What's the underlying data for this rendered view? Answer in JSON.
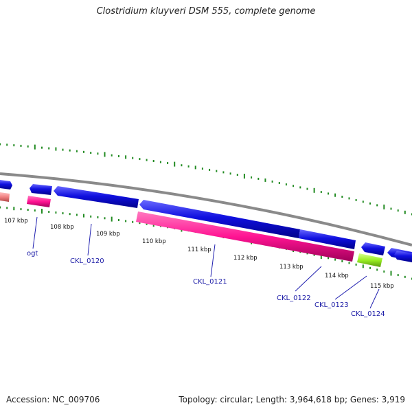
{
  "title": "Clostridium kluyveri DSM 555, complete genome",
  "footer": {
    "accession": "Accession: NC_009706",
    "topology": "Topology: circular; Length: 3,964,618 bp; Genes: 3,919"
  },
  "colors": {
    "backbone": "#888888",
    "forward_gene": "#1010e0",
    "reverse_gene_a": "#ff1493",
    "reverse_gene_b": "#f08080",
    "reverse_gene_c": "#99ee22",
    "gc_skew_marks": "#228b22",
    "label_line": "#2020b0"
  },
  "ticks": [
    "107 kbp",
    "108 kbp",
    "109 kbp",
    "110 kbp",
    "111 kbp",
    "112 kbp",
    "113 kbp",
    "114 kbp",
    "115 kbp"
  ],
  "gene_labels": [
    "ogt",
    "CKL_0120",
    "CKL_0121",
    "CKL_0122",
    "CKL_0123",
    "CKL_0124"
  ]
}
